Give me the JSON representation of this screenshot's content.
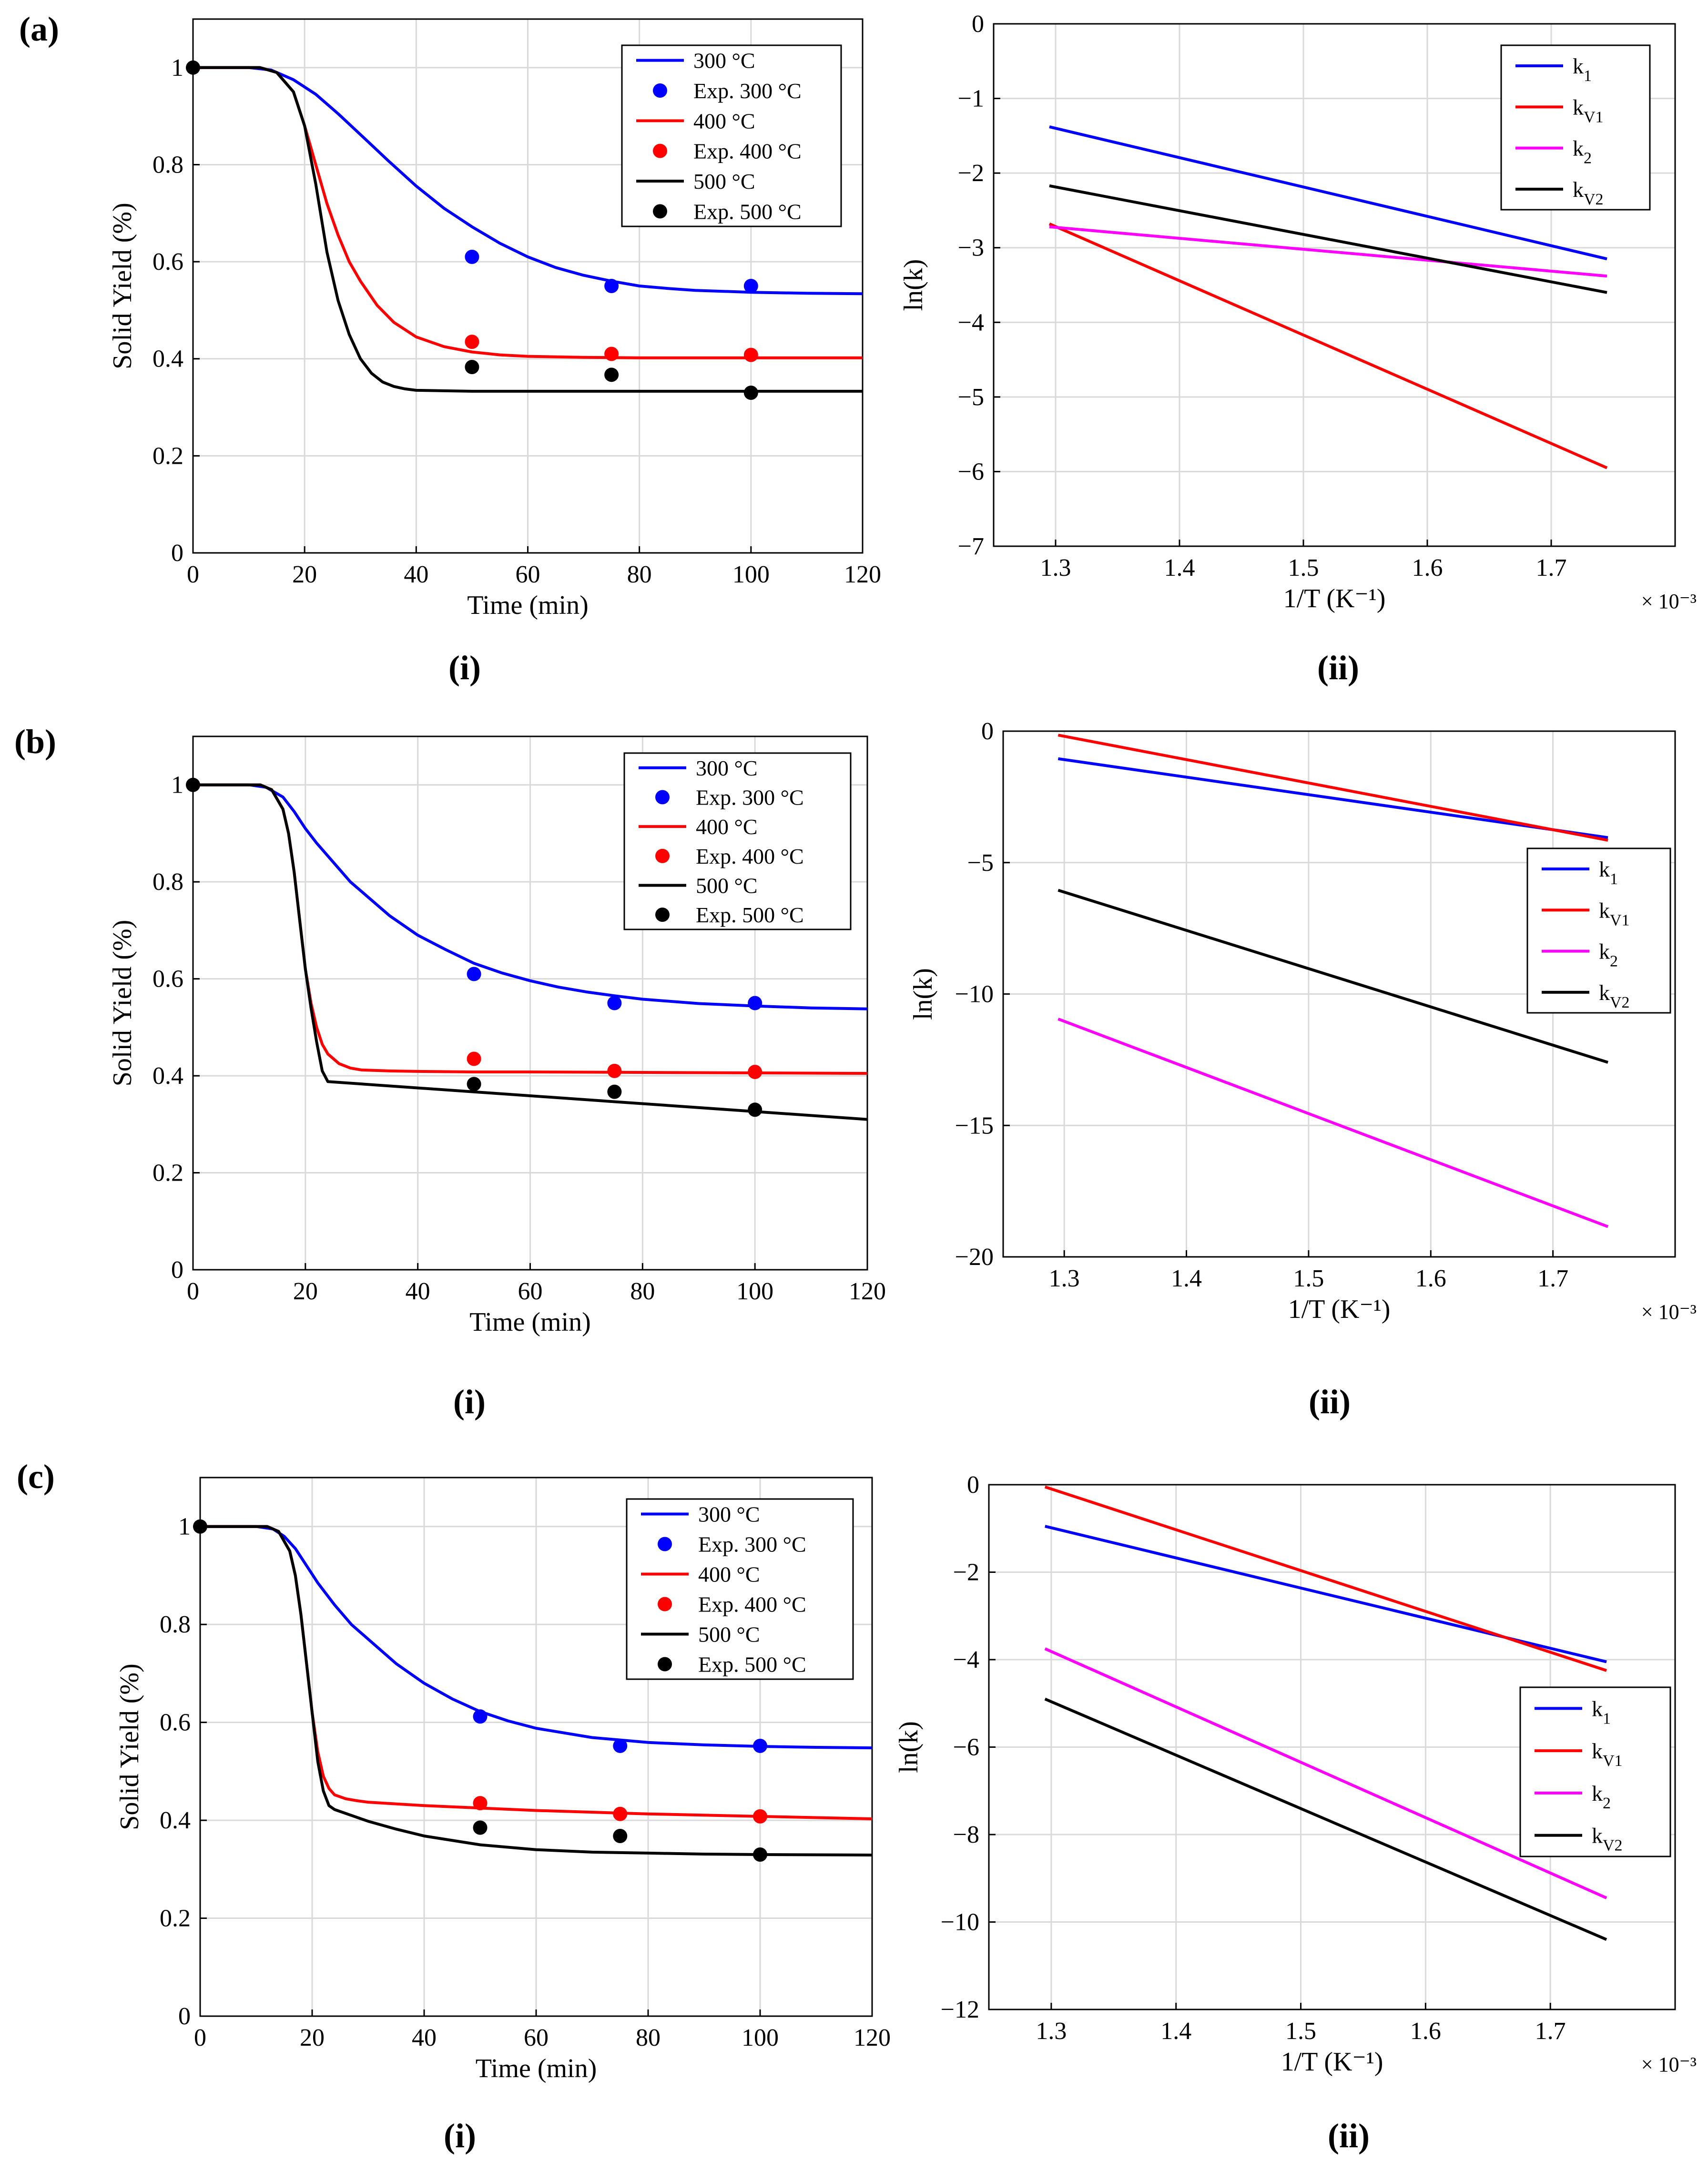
{
  "figure": {
    "panel_labels": [
      "(a)",
      "(b)",
      "(c)"
    ],
    "sub_labels": [
      "(i)",
      "(ii)"
    ]
  },
  "colors": {
    "blue": "#0000ff",
    "red": "#ff0000",
    "magenta": "#ff00ff",
    "black": "#000000",
    "grid": "#d9d9d9"
  },
  "chart_data": [
    {
      "id": "a-i",
      "type": "line",
      "xlabel": "Time (min)",
      "ylabel": "Solid Yield (%)",
      "xlim": [
        0,
        120
      ],
      "ylim": [
        0,
        1.1
      ],
      "xticks": [
        0,
        20,
        40,
        60,
        80,
        100,
        120
      ],
      "yticks": [
        0,
        0.2,
        0.4,
        0.6,
        0.8,
        1
      ],
      "ytick_labels": [
        "0",
        "0.2",
        "0.4",
        "0.6",
        "0.8",
        "1"
      ],
      "legend_position": "top-right",
      "series": [
        {
          "name": "300 °C",
          "kind": "line",
          "color": "blue",
          "x": [
            0,
            10,
            14,
            18,
            22,
            26,
            30,
            35,
            40,
            45,
            50,
            55,
            60,
            65,
            70,
            75,
            80,
            85,
            90,
            100,
            110,
            120
          ],
          "y": [
            1,
            1,
            0.995,
            0.975,
            0.945,
            0.905,
            0.862,
            0.808,
            0.756,
            0.71,
            0.672,
            0.638,
            0.61,
            0.588,
            0.572,
            0.56,
            0.55,
            0.545,
            0.541,
            0.537,
            0.535,
            0.534
          ]
        },
        {
          "name": "Exp. 300 °C",
          "kind": "points",
          "color": "blue",
          "x": [
            50,
            75,
            100
          ],
          "y": [
            0.61,
            0.55,
            0.55
          ]
        },
        {
          "name": "400 °C",
          "kind": "line",
          "color": "red",
          "x": [
            0,
            12,
            15,
            18,
            20,
            22,
            24,
            26,
            28,
            30,
            33,
            36,
            40,
            45,
            50,
            55,
            60,
            70,
            80,
            100,
            120
          ],
          "y": [
            1,
            1,
            0.99,
            0.95,
            0.88,
            0.8,
            0.72,
            0.655,
            0.6,
            0.56,
            0.51,
            0.475,
            0.445,
            0.425,
            0.414,
            0.408,
            0.405,
            0.403,
            0.402,
            0.402,
            0.402
          ]
        },
        {
          "name": "Exp. 400 °C",
          "kind": "points",
          "color": "red",
          "x": [
            50,
            75,
            100
          ],
          "y": [
            0.435,
            0.41,
            0.408
          ]
        },
        {
          "name": "500 °C",
          "kind": "line",
          "color": "black",
          "x": [
            0,
            12,
            15,
            18,
            20,
            22,
            24,
            26,
            28,
            30,
            32,
            34,
            36,
            38,
            40,
            45,
            50,
            60,
            80,
            100,
            120
          ],
          "y": [
            1,
            1,
            0.99,
            0.95,
            0.88,
            0.76,
            0.62,
            0.52,
            0.45,
            0.4,
            0.37,
            0.352,
            0.343,
            0.338,
            0.335,
            0.334,
            0.333,
            0.333,
            0.333,
            0.333,
            0.333
          ]
        },
        {
          "name": "Exp. 500 °C",
          "kind": "points",
          "color": "black",
          "x": [
            0,
            50,
            75,
            100
          ],
          "y": [
            1.0,
            0.383,
            0.367,
            0.33
          ]
        }
      ]
    },
    {
      "id": "a-ii",
      "type": "line",
      "xlabel": "1/T (K⁻¹)",
      "ylabel": "ln(k)",
      "x_multiplier": "× 10⁻³",
      "xlim": [
        1.25,
        1.8
      ],
      "ylim": [
        -7,
        0
      ],
      "xticks": [
        1.3,
        1.4,
        1.5,
        1.6,
        1.7
      ],
      "yticks": [
        0,
        -1,
        -2,
        -3,
        -4,
        -5,
        -6,
        -7
      ],
      "ytick_labels": [
        "0",
        "−1",
        "−2",
        "−3",
        "−4",
        "−5",
        "−6",
        "−7"
      ],
      "legend_position": "top-right",
      "series": [
        {
          "name": "k",
          "sub": "1",
          "kind": "line",
          "color": "blue",
          "x": [
            1.295,
            1.745
          ],
          "y": [
            -1.38,
            -3.15
          ]
        },
        {
          "name": "k",
          "sub": "V1",
          "kind": "line",
          "color": "red",
          "x": [
            1.295,
            1.745
          ],
          "y": [
            -2.68,
            -5.95
          ]
        },
        {
          "name": "k",
          "sub": "2",
          "kind": "line",
          "color": "magenta",
          "x": [
            1.295,
            1.745
          ],
          "y": [
            -2.72,
            -3.38
          ]
        },
        {
          "name": "k",
          "sub": "V2",
          "kind": "line",
          "color": "black",
          "x": [
            1.295,
            1.745
          ],
          "y": [
            -2.17,
            -3.6
          ]
        }
      ]
    },
    {
      "id": "b-i",
      "type": "line",
      "xlabel": "Time (min)",
      "ylabel": "Solid Yield (%)",
      "xlim": [
        0,
        120
      ],
      "ylim": [
        0,
        1.1
      ],
      "xticks": [
        0,
        20,
        40,
        60,
        80,
        100,
        120
      ],
      "yticks": [
        0,
        0.2,
        0.4,
        0.6,
        0.8,
        1
      ],
      "ytick_labels": [
        "0",
        "0.2",
        "0.4",
        "0.6",
        "0.8",
        "1"
      ],
      "legend_position": "top-right",
      "series": [
        {
          "name": "300 °C",
          "kind": "line",
          "color": "blue",
          "x": [
            0,
            10,
            13,
            16,
            18,
            20,
            22,
            25,
            28,
            30,
            35,
            40,
            45,
            50,
            55,
            60,
            65,
            70,
            75,
            80,
            90,
            100,
            110,
            120
          ],
          "y": [
            1,
            1,
            0.995,
            0.975,
            0.945,
            0.91,
            0.88,
            0.84,
            0.8,
            0.78,
            0.73,
            0.69,
            0.66,
            0.632,
            0.612,
            0.596,
            0.583,
            0.573,
            0.565,
            0.558,
            0.549,
            0.544,
            0.54,
            0.538
          ]
        },
        {
          "name": "Exp. 300 °C",
          "kind": "points",
          "color": "blue",
          "x": [
            50,
            75,
            100
          ],
          "y": [
            0.61,
            0.55,
            0.55
          ]
        },
        {
          "name": "400 °C",
          "kind": "line",
          "color": "red",
          "x": [
            0,
            12,
            14,
            16,
            17,
            18,
            19,
            20,
            21,
            22,
            23,
            24,
            26,
            28,
            30,
            35,
            40,
            50,
            60,
            80,
            100,
            120
          ],
          "y": [
            1,
            1,
            0.99,
            0.95,
            0.9,
            0.82,
            0.72,
            0.62,
            0.55,
            0.5,
            0.465,
            0.445,
            0.425,
            0.416,
            0.412,
            0.41,
            0.409,
            0.408,
            0.408,
            0.407,
            0.406,
            0.405
          ]
        },
        {
          "name": "Exp. 400 °C",
          "kind": "points",
          "color": "red",
          "x": [
            50,
            75,
            100
          ],
          "y": [
            0.435,
            0.41,
            0.408
          ]
        },
        {
          "name": "500 °C",
          "kind": "line",
          "color": "black",
          "x": [
            0,
            12,
            14,
            16,
            17,
            18,
            19,
            20,
            21,
            22,
            23,
            24,
            120
          ],
          "y": [
            1,
            1,
            0.99,
            0.95,
            0.9,
            0.82,
            0.72,
            0.62,
            0.54,
            0.47,
            0.41,
            0.388,
            0.31
          ]
        },
        {
          "name": "Exp. 500 °C",
          "kind": "points",
          "color": "black",
          "x": [
            0,
            50,
            75,
            100
          ],
          "y": [
            1.0,
            0.383,
            0.367,
            0.33
          ]
        }
      ]
    },
    {
      "id": "b-ii",
      "type": "line",
      "xlabel": "1/T (K⁻¹)",
      "ylabel": "ln(k)",
      "x_multiplier": "× 10⁻³",
      "xlim": [
        1.25,
        1.8
      ],
      "ylim": [
        -20,
        0
      ],
      "xticks": [
        1.3,
        1.4,
        1.5,
        1.6,
        1.7
      ],
      "yticks": [
        0,
        -5,
        -10,
        -15,
        -20
      ],
      "ytick_labels": [
        "0",
        "−5",
        "−10",
        "−15",
        "−20"
      ],
      "legend_position": "right",
      "series": [
        {
          "name": "k",
          "sub": "1",
          "kind": "line",
          "color": "blue",
          "x": [
            1.295,
            1.745
          ],
          "y": [
            -1.05,
            -4.05
          ]
        },
        {
          "name": "k",
          "sub": "V1",
          "kind": "line",
          "color": "red",
          "x": [
            1.295,
            1.745
          ],
          "y": [
            -0.15,
            -4.15
          ]
        },
        {
          "name": "k",
          "sub": "2",
          "kind": "line",
          "color": "magenta",
          "x": [
            1.295,
            1.745
          ],
          "y": [
            -10.95,
            -18.85
          ]
        },
        {
          "name": "k",
          "sub": "V2",
          "kind": "line",
          "color": "black",
          "x": [
            1.295,
            1.745
          ],
          "y": [
            -6.05,
            -12.6
          ]
        }
      ]
    },
    {
      "id": "c-i",
      "type": "line",
      "xlabel": "Time (min)",
      "ylabel": "Solid Yield (%)",
      "xlim": [
        0,
        120
      ],
      "ylim": [
        0,
        1.1
      ],
      "xticks": [
        0,
        20,
        40,
        60,
        80,
        100,
        120
      ],
      "yticks": [
        0,
        0.2,
        0.4,
        0.6,
        0.8,
        1
      ],
      "ytick_labels": [
        "0",
        "0.2",
        "0.4",
        "0.6",
        "0.8",
        "1"
      ],
      "legend_position": "top-right",
      "series": [
        {
          "name": "300 °C",
          "kind": "line",
          "color": "blue",
          "x": [
            0,
            10,
            13,
            15,
            17,
            19,
            21,
            24,
            27,
            30,
            35,
            40,
            45,
            50,
            55,
            60,
            70,
            80,
            90,
            100,
            110,
            120
          ],
          "y": [
            1,
            1,
            0.995,
            0.98,
            0.955,
            0.92,
            0.885,
            0.84,
            0.8,
            0.77,
            0.72,
            0.68,
            0.648,
            0.622,
            0.603,
            0.588,
            0.569,
            0.559,
            0.554,
            0.551,
            0.549,
            0.548
          ]
        },
        {
          "name": "Exp. 300 °C",
          "kind": "points",
          "color": "blue",
          "x": [
            50,
            75,
            100
          ],
          "y": [
            0.612,
            0.552,
            0.552
          ]
        },
        {
          "name": "400 °C",
          "kind": "line",
          "color": "red",
          "x": [
            0,
            12,
            14,
            16,
            17,
            18,
            19,
            20,
            21,
            22,
            23,
            24,
            26,
            28,
            30,
            40,
            50,
            60,
            80,
            100,
            120
          ],
          "y": [
            1,
            1,
            0.99,
            0.95,
            0.9,
            0.82,
            0.72,
            0.62,
            0.54,
            0.49,
            0.465,
            0.452,
            0.444,
            0.44,
            0.437,
            0.43,
            0.425,
            0.42,
            0.413,
            0.408,
            0.403
          ]
        },
        {
          "name": "Exp. 400 °C",
          "kind": "points",
          "color": "red",
          "x": [
            50,
            75,
            100
          ],
          "y": [
            0.435,
            0.413,
            0.408
          ]
        },
        {
          "name": "500 °C",
          "kind": "line",
          "color": "black",
          "x": [
            0,
            12,
            14,
            16,
            17,
            18,
            19,
            20,
            21,
            22,
            23,
            24,
            27,
            30,
            35,
            40,
            50,
            60,
            70,
            80,
            90,
            100,
            120
          ],
          "y": [
            1,
            1,
            0.99,
            0.95,
            0.9,
            0.82,
            0.72,
            0.62,
            0.52,
            0.46,
            0.43,
            0.422,
            0.41,
            0.398,
            0.382,
            0.368,
            0.35,
            0.34,
            0.335,
            0.333,
            0.331,
            0.33,
            0.329
          ]
        },
        {
          "name": "Exp. 500 °C",
          "kind": "points",
          "color": "black",
          "x": [
            0,
            50,
            75,
            100
          ],
          "y": [
            1.0,
            0.385,
            0.368,
            0.33
          ]
        }
      ]
    },
    {
      "id": "c-ii",
      "type": "line",
      "xlabel": "1/T (K⁻¹)",
      "ylabel": "ln(k)",
      "x_multiplier": "× 10⁻³",
      "xlim": [
        1.25,
        1.8
      ],
      "ylim": [
        -12,
        0
      ],
      "xticks": [
        1.3,
        1.4,
        1.5,
        1.6,
        1.7
      ],
      "yticks": [
        0,
        -2,
        -4,
        -6,
        -8,
        -10,
        -12
      ],
      "ytick_labels": [
        "0",
        "−2",
        "−4",
        "−6",
        "−8",
        "−10",
        "−12"
      ],
      "legend_position": "right",
      "series": [
        {
          "name": "k",
          "sub": "1",
          "kind": "line",
          "color": "blue",
          "x": [
            1.295,
            1.745
          ],
          "y": [
            -0.95,
            -4.05
          ]
        },
        {
          "name": "k",
          "sub": "V1",
          "kind": "line",
          "color": "red",
          "x": [
            1.295,
            1.745
          ],
          "y": [
            -0.05,
            -4.25
          ]
        },
        {
          "name": "k",
          "sub": "2",
          "kind": "line",
          "color": "magenta",
          "x": [
            1.295,
            1.745
          ],
          "y": [
            -3.75,
            -9.45
          ]
        },
        {
          "name": "k",
          "sub": "V2",
          "kind": "line",
          "color": "black",
          "x": [
            1.295,
            1.745
          ],
          "y": [
            -4.9,
            -10.4
          ]
        }
      ]
    }
  ]
}
